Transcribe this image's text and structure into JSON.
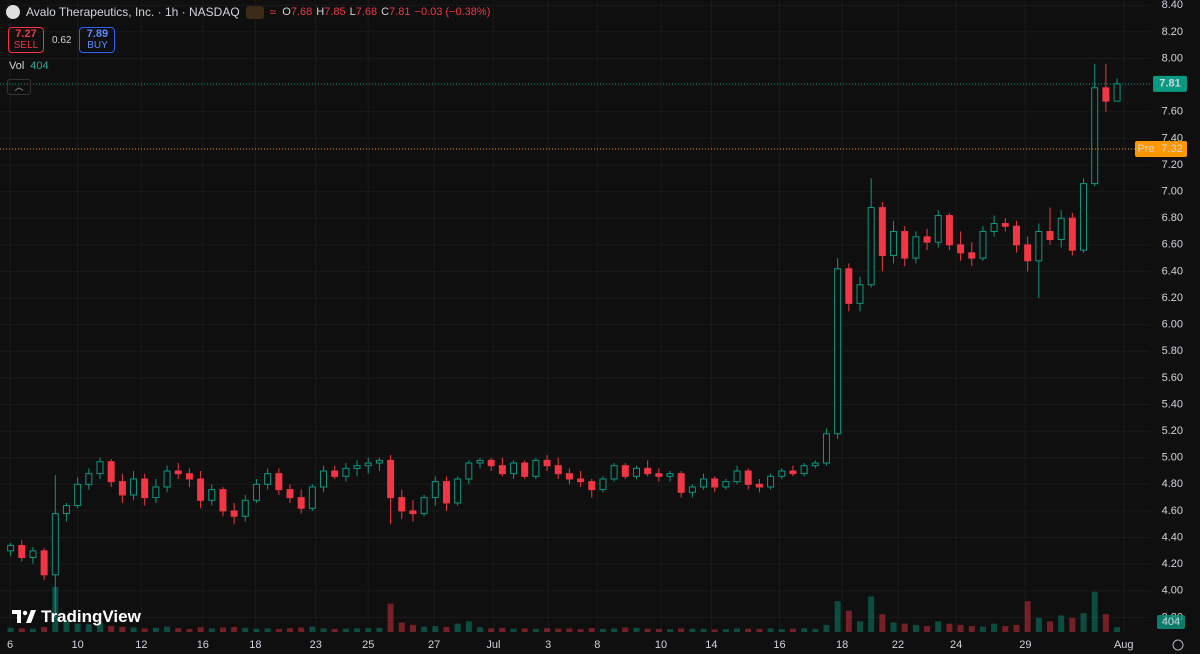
{
  "header": {
    "title": "Avalo Therapeutics, Inc. · 1h · NASDAQ",
    "ohlc_letters": [
      "O",
      "H",
      "L",
      "C"
    ],
    "change": "−0.03 (−0.38%)",
    "sell": {
      "price": 7.27,
      "label": "SELL"
    },
    "spread": 0.62,
    "buy": {
      "price": 7.89,
      "label": "BUY"
    },
    "vol_label": "Vol"
  },
  "logo": "TradingView",
  "chart_data": {
    "type": "candlestick",
    "up_color": "#089981",
    "down_color": "#f23645",
    "xlim": [
      0,
      102
    ],
    "xticks": [
      {
        "value": 0.45,
        "label": "6"
      },
      {
        "value": 6.5,
        "label": "10"
      },
      {
        "value": 12.2,
        "label": "12"
      },
      {
        "value": 17.7,
        "label": "16"
      },
      {
        "value": 22.4,
        "label": "18"
      },
      {
        "value": 27.8,
        "label": "23"
      },
      {
        "value": 32.5,
        "label": "25"
      },
      {
        "value": 38.4,
        "label": "27"
      },
      {
        "value": 43.7,
        "label": "Jul"
      },
      {
        "value": 48.6,
        "label": "3"
      },
      {
        "value": 53.0,
        "label": "8"
      },
      {
        "value": 58.7,
        "label": "10"
      },
      {
        "value": 63.2,
        "label": "14"
      },
      {
        "value": 69.3,
        "label": "16"
      },
      {
        "value": 74.9,
        "label": "18"
      },
      {
        "value": 79.9,
        "label": "22"
      },
      {
        "value": 85.1,
        "label": "24"
      },
      {
        "value": 91.3,
        "label": "29"
      },
      {
        "value": 100.1,
        "label": "Aug"
      }
    ],
    "ylim": [
      3.69,
      8.44
    ],
    "yticks": [
      {
        "value": 8.4,
        "label": "8.40"
      },
      {
        "value": 8.2,
        "label": "8.20"
      },
      {
        "value": 8.0,
        "label": "8.00"
      },
      {
        "value": 7.8,
        "label": "7.80"
      },
      {
        "value": 7.6,
        "label": "7.60"
      },
      {
        "value": 7.4,
        "label": "7.40"
      },
      {
        "value": 7.2,
        "label": "7.20"
      },
      {
        "value": 7.0,
        "label": "7.00"
      },
      {
        "value": 6.8,
        "label": "6.80"
      },
      {
        "value": 6.6,
        "label": "6.60"
      },
      {
        "value": 6.4,
        "label": "6.40"
      },
      {
        "value": 6.2,
        "label": "6.20"
      },
      {
        "value": 6.0,
        "label": "6.00"
      },
      {
        "value": 5.8,
        "label": "5.80"
      },
      {
        "value": 5.6,
        "label": "5.60"
      },
      {
        "value": 5.4,
        "label": "5.40"
      },
      {
        "value": 5.2,
        "label": "5.20"
      },
      {
        "value": 5.0,
        "label": "5.00"
      },
      {
        "value": 4.8,
        "label": "4.80"
      },
      {
        "value": 4.6,
        "label": "4.60"
      },
      {
        "value": 4.4,
        "label": "4.40"
      },
      {
        "value": 4.2,
        "label": "4.20"
      },
      {
        "value": 4.0,
        "label": "4.00"
      },
      {
        "value": 3.8,
        "label": "3.80"
      }
    ],
    "grid": true,
    "pre_market": {
      "label": "Pre",
      "value": 7.32,
      "color": "#ff9800"
    },
    "open": [
      4.3,
      4.34,
      4.25,
      4.3,
      4.12,
      4.58,
      4.64,
      4.8,
      4.88,
      4.97,
      4.82,
      4.72,
      4.84,
      4.7,
      4.78,
      4.9,
      4.88,
      4.84,
      4.68,
      4.76,
      4.6,
      4.56,
      4.68,
      4.8,
      4.88,
      4.76,
      4.7,
      4.62,
      4.78,
      4.9,
      4.86,
      4.92,
      4.94,
      4.96,
      4.98,
      4.7,
      4.6,
      4.58,
      4.7,
      4.82,
      4.66,
      4.84,
      4.96,
      4.98,
      4.94,
      4.88,
      4.96,
      4.86,
      4.98,
      4.94,
      4.88,
      4.84,
      4.82,
      4.76,
      4.84,
      4.94,
      4.86,
      4.92,
      4.88,
      4.86,
      4.88,
      4.74,
      4.78,
      4.84,
      4.78,
      4.82,
      4.9,
      4.8,
      4.78,
      4.86,
      4.9,
      4.88,
      4.94,
      4.96,
      5.18,
      6.42,
      6.16,
      6.3,
      6.88,
      6.52,
      6.7,
      6.5,
      6.66,
      6.62,
      6.82,
      6.6,
      6.54,
      6.5,
      6.7,
      6.76,
      6.74,
      6.6,
      6.48,
      6.7,
      6.64,
      6.8,
      6.56,
      7.06,
      7.78,
      7.68
    ],
    "high": [
      4.36,
      4.38,
      4.33,
      4.32,
      4.87,
      4.66,
      4.85,
      4.92,
      5.0,
      4.99,
      4.88,
      4.9,
      4.88,
      4.84,
      4.94,
      4.96,
      4.92,
      4.9,
      4.8,
      4.78,
      4.66,
      4.72,
      4.84,
      4.92,
      4.92,
      4.8,
      4.76,
      4.8,
      4.94,
      4.94,
      4.96,
      4.98,
      5.0,
      5.0,
      5.02,
      4.76,
      4.68,
      4.72,
      4.86,
      4.86,
      4.86,
      4.98,
      5.0,
      5.0,
      5.0,
      4.98,
      4.98,
      5.0,
      5.02,
      5.0,
      4.92,
      4.9,
      4.84,
      4.86,
      4.96,
      4.96,
      4.94,
      4.98,
      4.92,
      4.9,
      4.9,
      4.8,
      4.88,
      4.86,
      4.84,
      4.94,
      4.92,
      4.84,
      4.88,
      4.92,
      4.94,
      4.96,
      4.98,
      5.22,
      6.5,
      6.46,
      6.36,
      7.1,
      6.92,
      6.78,
      6.74,
      6.7,
      6.72,
      6.86,
      6.84,
      6.7,
      6.62,
      6.74,
      6.82,
      6.8,
      6.78,
      6.66,
      6.76,
      6.88,
      6.86,
      6.84,
      7.1,
      7.96,
      7.96,
      7.85
    ],
    "low": [
      4.26,
      4.22,
      4.2,
      4.08,
      3.8,
      4.52,
      4.62,
      4.76,
      4.84,
      4.78,
      4.66,
      4.68,
      4.64,
      4.66,
      4.74,
      4.84,
      4.78,
      4.62,
      4.64,
      4.56,
      4.5,
      4.52,
      4.66,
      4.76,
      4.72,
      4.66,
      4.58,
      4.6,
      4.74,
      4.84,
      4.82,
      4.86,
      4.88,
      4.9,
      4.5,
      4.54,
      4.52,
      4.56,
      4.64,
      4.6,
      4.64,
      4.8,
      4.92,
      4.9,
      4.86,
      4.84,
      4.84,
      4.84,
      4.9,
      4.84,
      4.8,
      4.78,
      4.7,
      4.74,
      4.82,
      4.84,
      4.84,
      4.86,
      4.82,
      4.82,
      4.7,
      4.7,
      4.76,
      4.74,
      4.76,
      4.8,
      4.76,
      4.74,
      4.76,
      4.84,
      4.86,
      4.86,
      4.92,
      4.94,
      5.14,
      6.1,
      6.1,
      6.28,
      6.4,
      6.46,
      6.44,
      6.46,
      6.56,
      6.58,
      6.56,
      6.48,
      6.44,
      6.48,
      6.66,
      6.7,
      6.54,
      6.4,
      6.2,
      6.6,
      6.58,
      6.52,
      6.54,
      7.04,
      7.6,
      7.68
    ],
    "close": [
      4.34,
      4.25,
      4.3,
      4.12,
      4.58,
      4.64,
      4.8,
      4.88,
      4.97,
      4.82,
      4.72,
      4.84,
      4.7,
      4.78,
      4.9,
      4.88,
      4.84,
      4.68,
      4.76,
      4.6,
      4.56,
      4.68,
      4.8,
      4.88,
      4.76,
      4.7,
      4.62,
      4.78,
      4.9,
      4.86,
      4.92,
      4.94,
      4.96,
      4.98,
      4.7,
      4.6,
      4.58,
      4.7,
      4.82,
      4.66,
      4.84,
      4.96,
      4.98,
      4.94,
      4.88,
      4.96,
      4.86,
      4.98,
      4.94,
      4.88,
      4.84,
      4.82,
      4.76,
      4.84,
      4.94,
      4.86,
      4.92,
      4.88,
      4.86,
      4.88,
      4.74,
      4.78,
      4.84,
      4.78,
      4.82,
      4.9,
      4.8,
      4.78,
      4.86,
      4.9,
      4.88,
      4.94,
      4.96,
      5.18,
      6.42,
      6.16,
      6.3,
      6.88,
      6.52,
      6.7,
      6.5,
      6.66,
      6.62,
      6.82,
      6.6,
      6.54,
      6.5,
      6.7,
      6.76,
      6.74,
      6.6,
      6.48,
      6.7,
      6.64,
      6.8,
      6.56,
      7.06,
      7.78,
      7.68,
      7.81
    ],
    "volume": [
      350,
      300,
      280,
      420,
      3800,
      900,
      700,
      650,
      800,
      500,
      420,
      380,
      300,
      350,
      450,
      320,
      260,
      400,
      300,
      380,
      420,
      350,
      280,
      300,
      260,
      320,
      380,
      450,
      300,
      260,
      280,
      300,
      320,
      350,
      2400,
      800,
      600,
      450,
      500,
      420,
      700,
      900,
      400,
      300,
      350,
      280,
      300,
      260,
      320,
      280,
      300,
      240,
      320,
      260,
      300,
      380,
      350,
      280,
      260,
      240,
      300,
      280,
      260,
      220,
      240,
      300,
      280,
      260,
      300,
      240,
      280,
      320,
      260,
      600,
      2600,
      1800,
      900,
      3000,
      1500,
      800,
      700,
      600,
      500,
      900,
      700,
      600,
      500,
      450,
      700,
      500,
      600,
      2600,
      1200,
      900,
      1400,
      1200,
      1600,
      3400,
      1500,
      404
    ]
  }
}
